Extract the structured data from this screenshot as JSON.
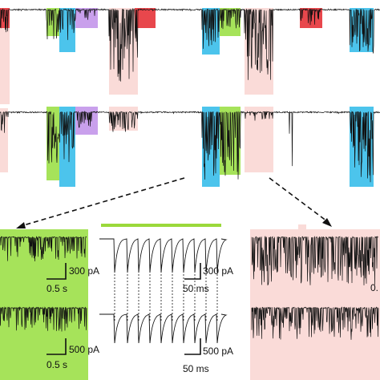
{
  "colors": {
    "pink": "#fadbd8",
    "red": "#e8474c",
    "green": "#a6e35a",
    "cyan": "#4cc4ec",
    "purple": "#c9a0ec",
    "trace": "#111111",
    "lightgreen_bar": "#9bd93b"
  },
  "scale_bars": {
    "left_top_y": "300 pA",
    "left_top_x": "0.5 s",
    "left_bottom_y": "500 pA",
    "left_bottom_x": "0.5 s",
    "mid_top_y": "300 pA",
    "mid_top_x": "50 ms",
    "mid_bottom_y": "500 pA",
    "mid_bottom_x": "50 ms",
    "right_top_x": "0."
  },
  "icons": {
    "arrow_left": "dashed-arrow",
    "arrow_right": "dashed-arrow"
  }
}
